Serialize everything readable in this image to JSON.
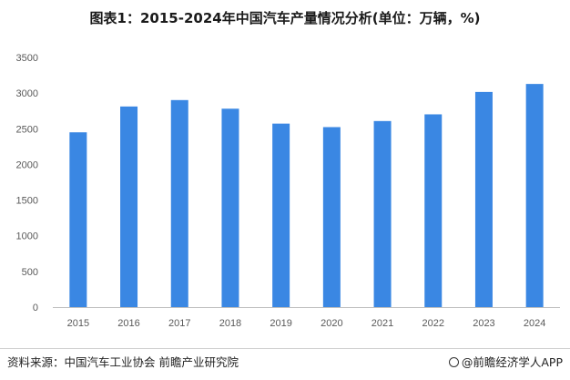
{
  "chart_data": {
    "type": "bar",
    "title": "图表1：2015-2024年中国汽车产量情况分析(单位：万辆，%)",
    "categories": [
      "2015",
      "2016",
      "2017",
      "2018",
      "2019",
      "2020",
      "2021",
      "2022",
      "2023",
      "2024"
    ],
    "series": [
      {
        "values": [
          2450,
          2812,
          2902,
          2781,
          2572,
          2523,
          2608,
          2702,
          3016,
          3128
        ]
      }
    ],
    "ylim": [
      0,
      3500
    ],
    "yticks": [
      0,
      500,
      1000,
      1500,
      2000,
      2500,
      3000,
      3500
    ],
    "grid": false,
    "bar_color": "#3a87e3",
    "axis_color": "#bfbfbf"
  },
  "footer": {
    "source": "资料来源：中国汽车工业协会 前瞻产业研究院",
    "brand": "@前瞻经济学人APP"
  },
  "icons": {
    "brand": "brand-circle-icon"
  }
}
